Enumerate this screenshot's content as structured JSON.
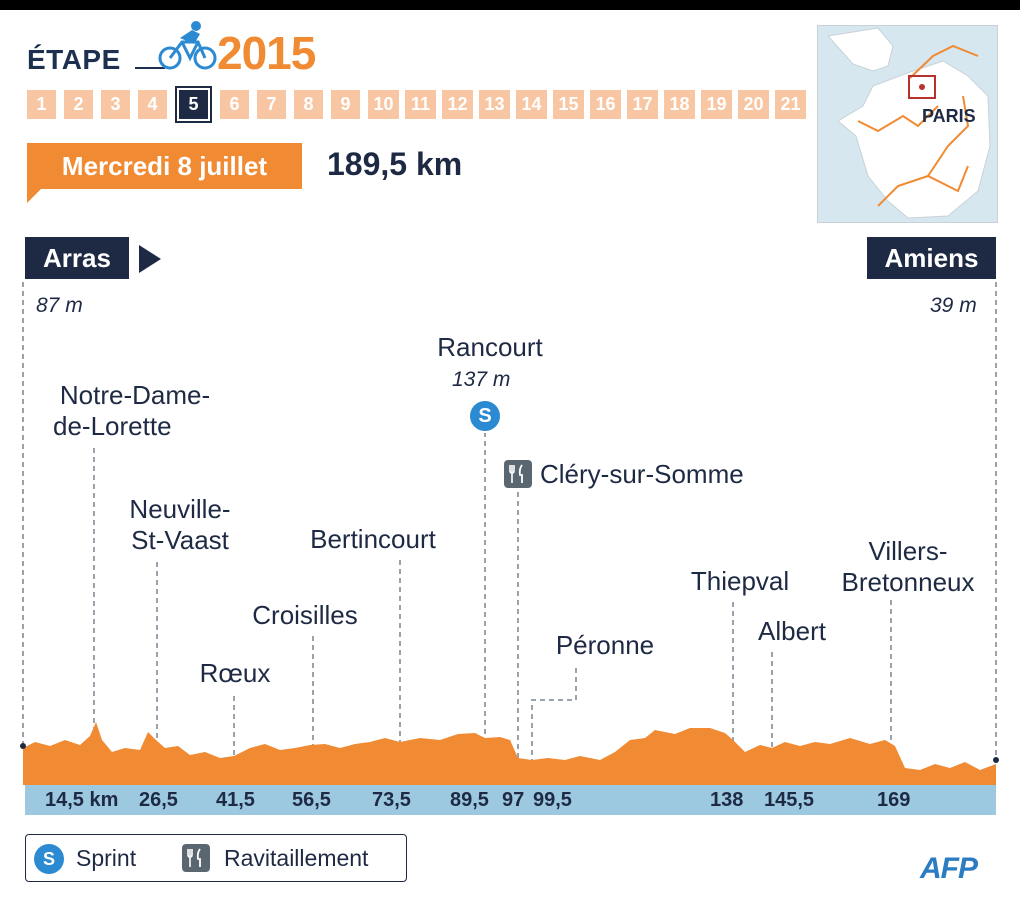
{
  "header": {
    "etape_label": "ÉTAPE",
    "year": "2015",
    "stages": [
      "1",
      "2",
      "3",
      "4",
      "5",
      "6",
      "7",
      "8",
      "9",
      "10",
      "11",
      "12",
      "13",
      "14",
      "15",
      "16",
      "17",
      "18",
      "19",
      "20",
      "21"
    ],
    "active_stage": "5",
    "date": "Mercredi 8 juillet",
    "distance": "189,5 km"
  },
  "map": {
    "label": "PARIS"
  },
  "start": {
    "city": "Arras",
    "altitude": "87 m"
  },
  "finish": {
    "city": "Amiens",
    "altitude": "39 m"
  },
  "places": {
    "notre_dame": [
      "Notre-Dame-",
      "de-Lorette"
    ],
    "neuville": [
      "Neuville-",
      "St-Vaast"
    ],
    "roeux": "Rœux",
    "croisilles": "Croisilles",
    "bertincourt": "Bertincourt",
    "rancourt": "Rancourt",
    "rancourt_alt": "137 m",
    "cléry": "Cléry-sur-Somme",
    "peronne": "Péronne",
    "thiepval": "Thiepval",
    "albert": "Albert",
    "villers": [
      "Villers-",
      "Bretonneux"
    ]
  },
  "km_labels": [
    "14,5 km",
    "26,5",
    "41,5",
    "56,5",
    "73,5",
    "89,5",
    "97",
    "99,5",
    "138",
    "145,5",
    "169"
  ],
  "legend": {
    "sprint_badge": "S",
    "sprint": "Sprint",
    "ravitaillement": "Ravitaillement"
  },
  "credit": "AFP",
  "colors": {
    "orange": "#f08a33",
    "navy": "#1e2a44",
    "light_orange": "#f8c6a2",
    "km_bar": "#9cc8e0",
    "sprint_blue": "#2b8ad1"
  }
}
